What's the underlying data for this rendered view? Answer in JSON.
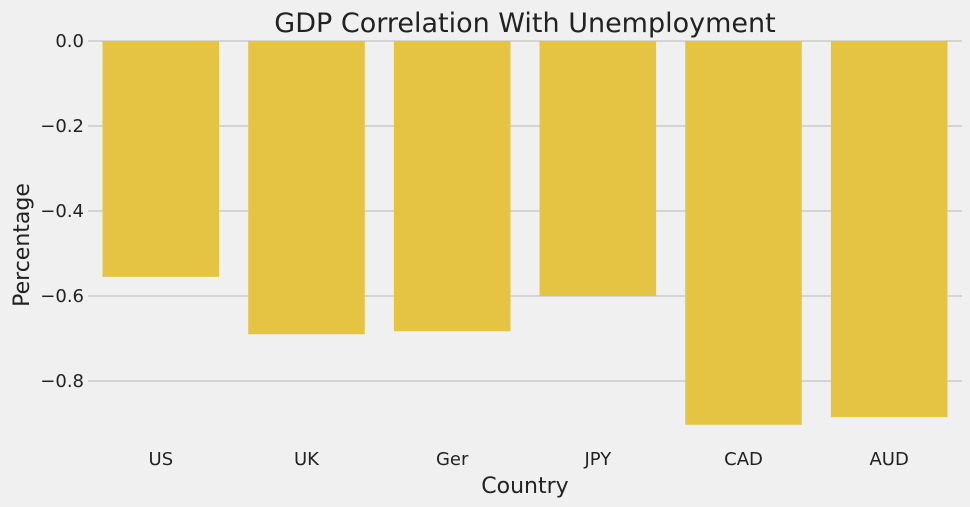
{
  "chart_data": {
    "type": "bar",
    "title": "GDP Correlation With Unemployment",
    "xlabel": "Country",
    "ylabel": "Percentage",
    "categories": [
      "US",
      "UK",
      "Ger",
      "JPY",
      "CAD",
      "AUD"
    ],
    "values": [
      -0.555,
      -0.69,
      -0.683,
      -0.6,
      -0.903,
      -0.885
    ],
    "ylim": [
      -0.92,
      0.0
    ],
    "yticks": [
      0.0,
      -0.2,
      -0.4,
      -0.6,
      -0.8
    ],
    "ytick_labels": [
      "0.0",
      "−0.2",
      "−0.4",
      "−0.6",
      "−0.8"
    ],
    "grid": "horizontal",
    "bar_color": "#e5c444",
    "background_color": "#f0f0f0"
  }
}
